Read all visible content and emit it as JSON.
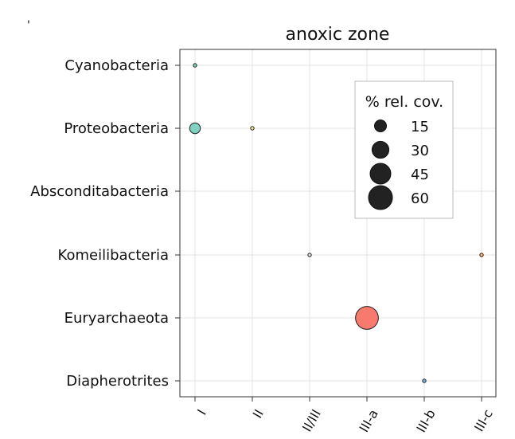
{
  "corner_mark": "'",
  "chart_data": {
    "type": "scatter",
    "title": "anoxic zone",
    "xlabel": "",
    "ylabel": "",
    "x_categories": [
      "I",
      "II",
      "II/III",
      "III-a",
      "III-b",
      "III-c"
    ],
    "y_categories": [
      "Cyanobacteria",
      "Proteobacteria",
      "Absconditabacteria",
      "Komeilibacteria",
      "Euryarchaeota",
      "Diapherotrites"
    ],
    "size_variable": "% rel. cov.",
    "grid": true,
    "legend": {
      "title": "% rel. cov.",
      "position": "upper-right",
      "entries": [
        15,
        30,
        45,
        60
      ],
      "labels": [
        "15",
        "30",
        "45",
        "60"
      ],
      "color": "#222222"
    },
    "points": [
      {
        "x": "I",
        "y": "Cyanobacteria",
        "value": 0.5,
        "color": "#7fd1c1"
      },
      {
        "x": "I",
        "y": "Proteobacteria",
        "value": 12,
        "color": "#7fd1c1"
      },
      {
        "x": "II",
        "y": "Proteobacteria",
        "value": 0.5,
        "color": "#f2e394"
      },
      {
        "x": "II/III",
        "y": "Komeilibacteria",
        "value": 0.5,
        "color": "#d9d9d9"
      },
      {
        "x": "III-c",
        "y": "Komeilibacteria",
        "value": 1,
        "color": "#f6b26b"
      },
      {
        "x": "III-a",
        "y": "Euryarchaeota",
        "value": 55,
        "color": "#f87a6e"
      },
      {
        "x": "III-b",
        "y": "Diapherotrites",
        "value": 0.3,
        "color": "#7ab3e0"
      }
    ]
  }
}
